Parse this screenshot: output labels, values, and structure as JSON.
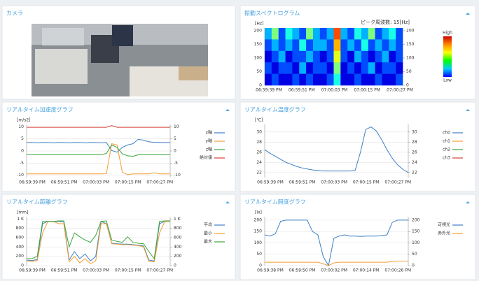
{
  "panels": [
    {
      "title": "カメラ"
    },
    {
      "title": "振動スペクトログラム",
      "chart_data": {
        "type": "heatmap",
        "annotation": "ピーク周波数: 15[Hz]",
        "y_label": "[Hz]",
        "ylim": [
          0,
          210
        ],
        "yticks": [
          0,
          50,
          100,
          150,
          200
        ],
        "y2lim": [
          0,
          210
        ],
        "y2ticks": [
          0,
          50,
          100,
          150,
          200
        ],
        "x_labels": [
          "06:59:39 PM",
          "06:59:51 PM",
          "07:00:03 PM",
          "07:00:15 PM",
          "07:00:27 PM"
        ],
        "colorbar_labels": [
          "High",
          "Low"
        ],
        "z": [
          [
            0.3,
            0.5,
            0.2,
            0.4,
            0.3,
            0.2,
            0.5,
            0.3,
            0.2,
            0.3,
            0.8,
            0.3,
            0.2,
            0.4,
            0.3,
            0.5,
            0.2,
            0.3,
            0.4,
            0.2
          ],
          [
            0.2,
            0.3,
            0.2,
            0.3,
            0.2,
            0.4,
            0.2,
            0.3,
            0.3,
            0.2,
            0.7,
            0.2,
            0.3,
            0.2,
            0.4,
            0.2,
            0.3,
            0.2,
            0.3,
            0.2
          ],
          [
            0.1,
            0.2,
            0.3,
            0.1,
            0.2,
            0.2,
            0.3,
            0.2,
            0.1,
            0.2,
            0.6,
            0.2,
            0.1,
            0.3,
            0.2,
            0.1,
            0.2,
            0.3,
            0.1,
            0.2
          ],
          [
            0.2,
            0.1,
            0.2,
            0.2,
            0.1,
            0.3,
            0.1,
            0.2,
            0.2,
            0.1,
            0.5,
            0.1,
            0.2,
            0.1,
            0.2,
            0.3,
            0.1,
            0.2,
            0.2,
            0.1
          ],
          [
            0.1,
            0.2,
            0.1,
            0.1,
            0.2,
            0.1,
            0.2,
            0.1,
            0.1,
            0.2,
            0.4,
            0.1,
            0.1,
            0.2,
            0.1,
            0.1,
            0.2,
            0.1,
            0.1,
            0.2
          ]
        ]
      }
    },
    {
      "title": "リアルタイム加速度グラフ",
      "chart_data": {
        "type": "line",
        "y_label": "[m/s2]",
        "ylim": [
          -11,
          11
        ],
        "yticks": [
          -10,
          -5,
          0,
          5,
          10
        ],
        "y2lim": [
          -11,
          11
        ],
        "y2ticks": [
          -10,
          -5,
          0,
          5,
          10
        ],
        "categories": [
          "06:59:39 PM",
          null,
          null,
          null,
          null,
          null,
          "06:59:51 PM",
          null,
          null,
          null,
          null,
          null,
          "07:00:03 PM",
          null,
          null,
          null,
          null,
          null,
          "07:00:15 PM",
          null,
          null,
          null,
          null,
          null,
          "07:00:27 PM",
          null,
          null,
          null
        ],
        "series": [
          {
            "name": "x軸",
            "color": "#3b7fc4",
            "values": [
              3.5,
              3.5,
              3.4,
              3.5,
              3.5,
              3.4,
              3.5,
              3.5,
              3.4,
              3.5,
              3.5,
              3.4,
              3.5,
              3.5,
              3.4,
              3.5,
              0.2,
              -0.5,
              1.5,
              2.5,
              3,
              4.8,
              4.5,
              3.8,
              3.6,
              3.5,
              3.5,
              3.5
            ]
          },
          {
            "name": "y軸",
            "color": "#f39c33",
            "values": [
              -9.5,
              -9.5,
              -9.5,
              -9.5,
              -9.5,
              -9.5,
              -9.5,
              -9.5,
              -9.5,
              -9.5,
              -9.5,
              -9.5,
              -9.5,
              -9.5,
              -9.5,
              -9.4,
              3,
              2.5,
              -8.8,
              -9.8,
              -9.5,
              -9.5,
              -9.5,
              -9.5,
              -9,
              -9.5,
              -9.5,
              -9.5
            ]
          },
          {
            "name": "z軸",
            "color": "#3aa63a",
            "values": [
              -1.5,
              -1.5,
              -1.5,
              -1.5,
              -1.5,
              -1.5,
              -1.5,
              -1.5,
              -1.5,
              -1.5,
              -1.5,
              -1.5,
              -1.5,
              -1.5,
              -1.5,
              -1,
              2.5,
              1.5,
              -1.2,
              -2,
              -2.2,
              -1.6,
              -1.6,
              -1.6,
              -1.6,
              -1.6,
              -1.6,
              -1.6
            ]
          },
          {
            "name": "絶対値",
            "color": "#d9413a",
            "values": [
              9.8,
              9.8,
              9.8,
              9.8,
              9.8,
              9.8,
              9.8,
              9.8,
              9.8,
              9.8,
              9.8,
              9.8,
              9.8,
              9.8,
              9.8,
              9.8,
              10.5,
              9.8,
              9.8,
              9.8,
              9.8,
              9.8,
              9.8,
              9.8,
              9.8,
              9.8,
              9.8,
              9.8
            ]
          }
        ]
      }
    },
    {
      "title": "リアルタイム温度グラフ",
      "chart_data": {
        "type": "line",
        "y_label": "[℃]",
        "ylim": [
          21,
          31.5
        ],
        "yticks": [
          22,
          24,
          26,
          28,
          30
        ],
        "y2lim": [
          21,
          31.5
        ],
        "y2ticks": [
          22,
          24,
          26,
          28,
          30
        ],
        "categories": [
          "06:59:39 PM",
          null,
          null,
          null,
          null,
          null,
          "06:59:51 PM",
          null,
          null,
          null,
          null,
          null,
          "07:00:03 PM",
          null,
          null,
          null,
          null,
          null,
          "07:00:15 PM",
          null,
          null,
          null,
          null,
          null,
          "07:00:27 PM",
          null,
          null,
          null
        ],
        "series": [
          {
            "name": "ch0",
            "color": "#3b7fc4",
            "values": [
              26.5,
              25.8,
              25.2,
              24.6,
              24,
              23.6,
              23.2,
              22.9,
              22.7,
              22.5,
              22.4,
              22.3,
              22.3,
              22.3,
              22.3,
              22.3,
              22.3,
              22.4,
              26,
              30.5,
              31,
              30.2,
              28.5,
              26.5,
              24.8,
              23.5,
              22.6,
              22
            ]
          },
          {
            "name": "ch1",
            "color": "#f39c33",
            "values": [
              null,
              null,
              null,
              null,
              null,
              null,
              null,
              null,
              null,
              null,
              null,
              null,
              null,
              null,
              null,
              null,
              null,
              null,
              null,
              null,
              null,
              null,
              null,
              null,
              null,
              null,
              null,
              null
            ]
          },
          {
            "name": "ch2",
            "color": "#3aa63a",
            "values": [
              null,
              null,
              null,
              null,
              null,
              null,
              null,
              null,
              null,
              null,
              null,
              null,
              null,
              null,
              null,
              null,
              null,
              null,
              null,
              null,
              null,
              null,
              null,
              null,
              null,
              null,
              null,
              null
            ]
          },
          {
            "name": "ch3",
            "color": "#d9413a",
            "values": [
              null,
              null,
              null,
              null,
              null,
              null,
              null,
              null,
              null,
              null,
              null,
              null,
              null,
              null,
              null,
              null,
              null,
              null,
              null,
              null,
              null,
              null,
              null,
              null,
              null,
              null,
              null,
              null
            ]
          }
        ]
      }
    },
    {
      "title": "リアルタイム距離グラフ",
      "chart_data": {
        "type": "line",
        "y_label": "[mm]",
        "ylim": [
          0,
          1050
        ],
        "yticks": [
          0,
          200,
          400,
          600,
          800,
          {
            "value": 1000,
            "label": "1 K"
          }
        ],
        "y2lim": [
          0,
          1050
        ],
        "y2ticks": [
          0,
          200,
          400,
          600,
          800,
          {
            "value": 1000,
            "label": "1 K"
          }
        ],
        "categories": [
          "06:59:39 PM",
          null,
          null,
          null,
          null,
          null,
          "06:59:51 PM",
          null,
          null,
          null,
          null,
          null,
          "07:00:03 PM",
          null,
          null,
          null,
          null,
          null,
          "07:00:15 PM",
          null,
          null,
          null,
          null,
          null,
          "07:00:27 PM",
          null,
          null,
          null
        ],
        "series": [
          {
            "name": "平均",
            "color": "#3b7fc4",
            "values": [
              120,
              110,
              130,
              900,
              950,
              950,
              950,
              940,
              120,
              300,
              150,
              250,
              100,
              200,
              950,
              900,
              480,
              470,
              460,
              460,
              450,
              440,
              420,
              120,
              100,
              900,
              950,
              950
            ]
          },
          {
            "name": "最小",
            "color": "#f39c33",
            "values": [
              100,
              90,
              110,
              700,
              950,
              950,
              900,
              900,
              80,
              200,
              60,
              150,
              40,
              100,
              900,
              900,
              470,
              460,
              450,
              450,
              440,
              430,
              400,
              90,
              80,
              700,
              950,
              950
            ]
          },
          {
            "name": "最大",
            "color": "#3aa63a",
            "values": [
              150,
              150,
              200,
              950,
              950,
              950,
              960,
              960,
              400,
              700,
              620,
              550,
              500,
              650,
              950,
              960,
              550,
              520,
              500,
              620,
              500,
              480,
              470,
              300,
              150,
              950,
              960,
              960
            ]
          }
        ]
      }
    },
    {
      "title": "リアルタイム照度グラフ",
      "chart_data": {
        "type": "line",
        "y_label": "[lx]",
        "ylim": [
          0,
          215
        ],
        "yticks": [
          0,
          50,
          100,
          150,
          200
        ],
        "y2lim": [
          0,
          215
        ],
        "y2ticks": [
          0,
          50,
          100,
          150,
          200
        ],
        "categories": [
          "06:59:38 PM",
          null,
          null,
          null,
          null,
          null,
          "06:59:50 PM",
          null,
          null,
          null,
          null,
          null,
          "07:00:02 PM",
          null,
          null,
          null,
          null,
          null,
          "07:00:14 PM",
          null,
          null,
          null,
          null,
          null,
          "07:00:26 PM",
          null,
          null,
          null
        ],
        "series": [
          {
            "name": "可視光",
            "color": "#3b7fc4",
            "values": [
              135,
              130,
              140,
              195,
              200,
              200,
              200,
              200,
              200,
              150,
              135,
              40,
              0,
              120,
              130,
              135,
              130,
              130,
              128,
              130,
              130,
              130,
              132,
              135,
              190,
              200,
              200,
              200
            ]
          },
          {
            "name": "赤外光",
            "color": "#f39c33",
            "values": [
              15,
              15,
              15,
              15,
              15,
              15,
              15,
              15,
              15,
              15,
              15,
              8,
              0,
              12,
              15,
              15,
              15,
              15,
              15,
              15,
              15,
              15,
              15,
              15,
              18,
              20,
              20,
              20
            ]
          }
        ]
      }
    }
  ]
}
